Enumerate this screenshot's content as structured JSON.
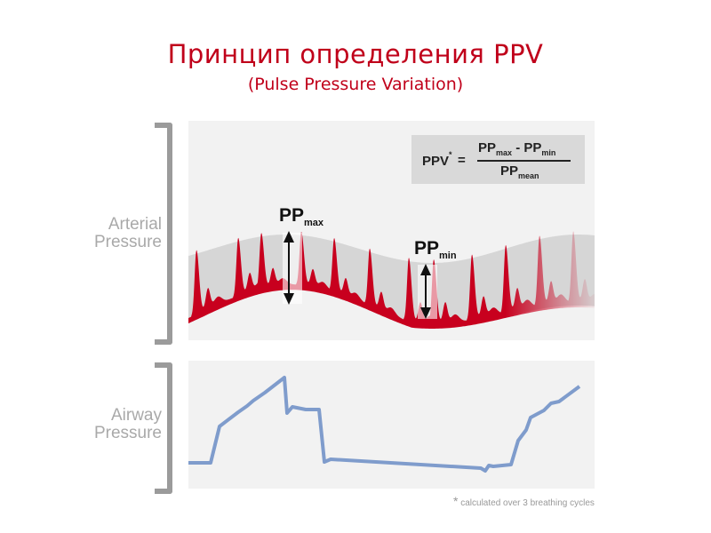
{
  "title": "Принцип определения PPV",
  "subtitle": "(Pulse Pressure Variation)",
  "arterial_label": [
    "Arterial",
    "Pressure"
  ],
  "airway_label": [
    "Airway",
    "Pressure"
  ],
  "formula": {
    "lhs": "PPV",
    "lhs_star": "*",
    "eq": "=",
    "pp": "PP",
    "max": "max",
    "minus": "-",
    "min": "min",
    "mean": "mean"
  },
  "ppmax": {
    "pp": "PP",
    "sub": "max"
  },
  "ppmin": {
    "pp": "PP",
    "sub": "min"
  },
  "footnote": {
    "star": "*",
    "text": "calculated over 3 breathing cycles"
  },
  "colors": {
    "title": "#c0001a",
    "wave": "#c8001e",
    "airway_line": "#7f9ccc",
    "label": "#a9a9a9"
  }
}
